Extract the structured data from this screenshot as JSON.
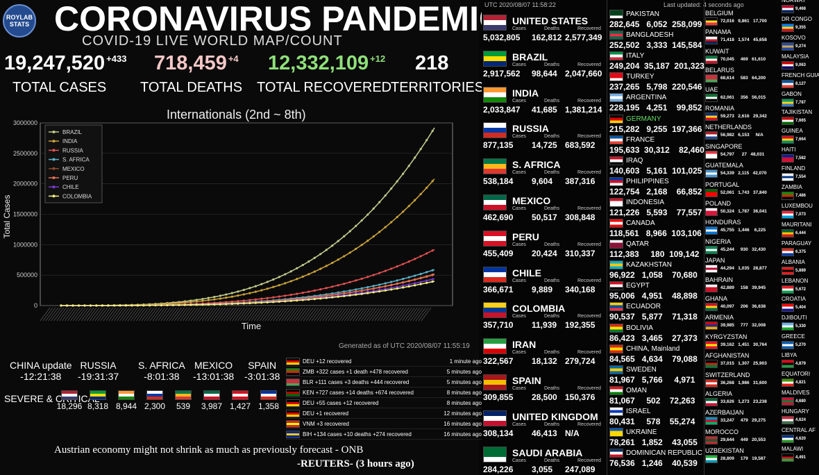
{
  "header": {
    "logo_text": "ROYLAB STATS",
    "title": "CORONAVIRUS PANDEMIC",
    "subtitle": "COVID-19 LIVE WORLD MAP/COUNT"
  },
  "totals": {
    "cases": {
      "value": "19,247,520",
      "delta": "+433",
      "label": "TOTAL CASES",
      "color": "#ffffff"
    },
    "deaths": {
      "value": "718,459",
      "delta": "+4",
      "label": "TOTAL DEATHS",
      "color": "#f5c7c7"
    },
    "recovered": {
      "value": "12,332,109",
      "delta": "+12",
      "label": "TOTAL RECOVERED",
      "color": "#8fe07a"
    },
    "territories": {
      "value": "218",
      "label": "TERRITORIES"
    }
  },
  "chart_data": {
    "type": "line",
    "title": "Internationals (2nd ~ 8th)",
    "xlabel": "Time",
    "ylabel": "Total Cases",
    "ylim": [
      0,
      3000000
    ],
    "yticks": [
      "0",
      "500000",
      "1000000",
      "1500000",
      "2000000",
      "2500000",
      "3000000"
    ],
    "legend_position": "top-left",
    "series": [
      {
        "name": "BRAZIL",
        "color": "#bfc98a",
        "final": 2920000
      },
      {
        "name": "INDIA",
        "color": "#c9a23a",
        "final": 2080000
      },
      {
        "name": "RUSSIA",
        "color": "#e05050",
        "final": 920000
      },
      {
        "name": "S. AFRICA",
        "color": "#5ab0c8",
        "final": 590000
      },
      {
        "name": "MEXICO",
        "color": "#8a4a30",
        "final": 520000
      },
      {
        "name": "PERU",
        "color": "#e07050",
        "final": 510000
      },
      {
        "name": "CHILE",
        "color": "#7a3ad0",
        "final": 440000
      },
      {
        "name": "COLOMBIA",
        "color": "#f0f080",
        "final": 400000
      }
    ],
    "footnote": "Generated as of UTC 2020/08/07 11:55:19"
  },
  "updates": [
    {
      "name": "CHINA update",
      "time": "-12:21:38"
    },
    {
      "name": "RUSSIA",
      "time": "-19:31:37"
    },
    {
      "name": "S. AFRICA",
      "time": "-8:01:38"
    },
    {
      "name": "MEXICO",
      "time": "-13:01:38"
    },
    {
      "name": "SPAIN",
      "time": "-3:01:38"
    }
  ],
  "severe": {
    "label": "SEVERE & CRITICAL",
    "items": [
      {
        "flag": "us",
        "value": "18,296"
      },
      {
        "flag": "br",
        "value": "8,318"
      },
      {
        "flag": "in",
        "value": "8,944"
      },
      {
        "flag": "ru",
        "value": "2,300"
      },
      {
        "flag": "za",
        "value": "539"
      },
      {
        "flag": "mx",
        "value": "3,987"
      },
      {
        "flag": "pe",
        "value": "1,427"
      },
      {
        "flag": "cl",
        "value": "1,358"
      }
    ]
  },
  "feed": [
    {
      "flag": "de",
      "text": "DEU +12 recovered",
      "time": "1 minute ago"
    },
    {
      "flag": "zm",
      "text": "ZMB +322 cases +1 death +478 recovered",
      "time": "5 minutes ago"
    },
    {
      "flag": "by",
      "text": "BLR +111 cases +3 deaths +444 recovered",
      "time": "5 minutes ago"
    },
    {
      "flag": "ke",
      "text": "KEN +727 cases +14 deaths +674 recovered",
      "time": "8 minutes ago"
    },
    {
      "flag": "de",
      "text": "DEU +55 cases +12 recovered",
      "time": "8 minutes ago"
    },
    {
      "flag": "de",
      "text": "DEU +1 recovered",
      "time": "12 minutes ago"
    },
    {
      "flag": "vn",
      "text": "VNM +3 recovered",
      "time": "16 minutes ago"
    },
    {
      "flag": "ba",
      "text": "BIH +134 cases +10 deaths +274 recovered",
      "time": "16 minutes ago"
    }
  ],
  "news": {
    "headline": "Austrian economy might not shrink as much as previously forecast - ONB",
    "source": "-REUTERS- (3 hours ago)"
  },
  "right_header": {
    "utc": "UTC 2020/08/07 11:58:22",
    "last_updated": "Last updated: 4 seconds ago"
  },
  "col_labels": {
    "cases": "Cases",
    "deaths": "Deaths",
    "recovered": "Recovered"
  },
  "big_countries": [
    {
      "name": "UNITED STATES",
      "flag": "us",
      "cases": "5,032,805",
      "deaths": "162,812",
      "recovered": "2,577,349"
    },
    {
      "name": "BRAZIL",
      "flag": "br",
      "cases": "2,917,562",
      "deaths": "98,644",
      "recovered": "2,047,660"
    },
    {
      "name": "INDIA",
      "flag": "in",
      "cases": "2,033,847",
      "deaths": "41,685",
      "recovered": "1,381,214"
    },
    {
      "name": "RUSSIA",
      "flag": "ru",
      "cases": "877,135",
      "deaths": "14,725",
      "recovered": "683,592"
    },
    {
      "name": "S. AFRICA",
      "flag": "za",
      "cases": "538,184",
      "deaths": "9,604",
      "recovered": "387,316"
    },
    {
      "name": "MEXICO",
      "flag": "mx",
      "cases": "462,690",
      "deaths": "50,517",
      "recovered": "308,848"
    },
    {
      "name": "PERU",
      "flag": "pe",
      "cases": "455,409",
      "deaths": "20,424",
      "recovered": "310,337"
    },
    {
      "name": "CHILE",
      "flag": "cl",
      "cases": "366,671",
      "deaths": "9,889",
      "recovered": "340,168"
    },
    {
      "name": "COLOMBIA",
      "flag": "co",
      "cases": "357,710",
      "deaths": "11,939",
      "recovered": "192,355"
    },
    {
      "name": "IRAN",
      "flag": "ir",
      "cases": "322,567",
      "deaths": "18,132",
      "recovered": "279,724"
    },
    {
      "name": "SPAIN",
      "flag": "es",
      "cases": "309,855",
      "deaths": "28,500",
      "recovered": "150,376"
    },
    {
      "name": "UNITED KINGDOM",
      "flag": "gb",
      "cases": "308,134",
      "deaths": "46,413",
      "recovered": "N/A"
    },
    {
      "name": "SAUDI ARABIA",
      "flag": "sa",
      "cases": "284,226",
      "deaths": "3,055",
      "recovered": "247,089"
    }
  ],
  "mid_countries": [
    {
      "name": "PAKISTAN",
      "flag": "pk",
      "values": "282,645   6,052  258,099"
    },
    {
      "name": "BANGLADESH",
      "flag": "bd",
      "values": "252,502   3,333  145,584"
    },
    {
      "name": "ITALY",
      "flag": "it",
      "values": "249,204  35,187  201,323"
    },
    {
      "name": "TURKEY",
      "flag": "tr",
      "values": "237,265   5,798  220,546"
    },
    {
      "name": "ARGENTINA",
      "flag": "ar",
      "values": "228,195   4,251    99,852"
    },
    {
      "name": "GERMANY",
      "flag": "de",
      "values": "215,282   9,255  197,366",
      "highlight": "#66dd66"
    },
    {
      "name": "FRANCE",
      "flag": "fr",
      "values": "195,633  30,312    82,460"
    },
    {
      "name": "IRAQ",
      "flag": "iq",
      "values": "140,603   5,161  101,025"
    },
    {
      "name": "PHILIPPINES",
      "flag": "ph",
      "values": "122,754   2,168    66,852"
    },
    {
      "name": "INDONESIA",
      "flag": "id",
      "values": "121,226   5,593    77,557"
    },
    {
      "name": "CANADA",
      "flag": "ca",
      "values": "118,561   8,966  103,106"
    },
    {
      "name": "QATAR",
      "flag": "qa",
      "values": "112,383     180  109,142"
    },
    {
      "name": "KAZAKHSTAN",
      "flag": "kz",
      "values": "96,922   1,058    70,680"
    },
    {
      "name": "EGYPT",
      "flag": "eg",
      "values": "95,006   4,951    48,898"
    },
    {
      "name": "ECUADOR",
      "flag": "ec",
      "values": "90,537   5,877    71,318"
    },
    {
      "name": "BOLIVIA",
      "flag": "bo",
      "values": "86,423   3,465    27,373"
    },
    {
      "name": "CHINA, Mainland",
      "flag": "cn",
      "values": "84,565   4,634    79,088"
    },
    {
      "name": "SWEDEN",
      "flag": "se",
      "values": "81,967   5,766     4,971"
    },
    {
      "name": "OMAN",
      "flag": "om",
      "values": "81,067     502    72,263"
    },
    {
      "name": "ISRAEL",
      "flag": "il",
      "values": "80,431     578    55,274"
    },
    {
      "name": "UKRAINE",
      "flag": "ua",
      "values": "78,261   1,852    43,055"
    },
    {
      "name": "DOMINICAN REPUBLIC",
      "flag": "do",
      "values": "76,536   1,246    40,539"
    }
  ],
  "small_countries": [
    {
      "name": "BELGIUM",
      "flag": "be",
      "values": "72,016   9,861   17,700"
    },
    {
      "name": "PANAMA",
      "flag": "pa",
      "values": "71,418   1,574   45,658"
    },
    {
      "name": "KUWAIT",
      "flag": "kw",
      "values": "70,045     469   61,610"
    },
    {
      "name": "BELARUS",
      "flag": "by",
      "values": "68,614     583   64,200"
    },
    {
      "name": "UAE",
      "flag": "ae",
      "values": "62,061     356   56,015"
    },
    {
      "name": "ROMANIA",
      "flag": "ro",
      "values": "59,273   2,616   29,342"
    },
    {
      "name": "NETHERLANDS",
      "flag": "nl",
      "values": "56,982   6,153     N/A"
    },
    {
      "name": "SINGAPORE",
      "flag": "sg",
      "values": "54,797      27   48,031"
    },
    {
      "name": "GUATEMALA",
      "flag": "gt",
      "values": "54,339   2,115   42,070"
    },
    {
      "name": "PORTUGAL",
      "flag": "pt",
      "values": "52,061   1,743   37,840"
    },
    {
      "name": "POLAND",
      "flag": "pl",
      "values": "50,324   1,787   36,041"
    },
    {
      "name": "HONDURAS",
      "flag": "hn",
      "values": "45,755   1,446    6,225"
    },
    {
      "name": "NIGERIA",
      "flag": "ng",
      "values": "45,244     930   32,430"
    },
    {
      "name": "JAPAN",
      "flag": "jp",
      "values": "44,294   1,035   28,877"
    },
    {
      "name": "BAHRAIN",
      "flag": "bh",
      "values": "42,889     158   39,945"
    },
    {
      "name": "GHANA",
      "flag": "gh",
      "values": "40,097     206   36,638"
    },
    {
      "name": "ARMENIA",
      "flag": "am",
      "values": "39,985     777   32,008"
    },
    {
      "name": "KYRGYZSTAN",
      "flag": "kg",
      "values": "39,162   1,451   30,764"
    },
    {
      "name": "AFGHANISTAN",
      "flag": "af",
      "values": "37,015   1,307   25,903"
    },
    {
      "name": "SWITZERLAND",
      "flag": "ch",
      "values": "36,268   1,986   31,600"
    },
    {
      "name": "ALGERIA",
      "flag": "dz",
      "values": "33,626   1,273   23,238"
    },
    {
      "name": "AZERBAIJAN",
      "flag": "az",
      "values": "33,247     479   29,275"
    },
    {
      "name": "MOROCCO",
      "flag": "ma",
      "values": "29,644     449   20,553"
    },
    {
      "name": "UZBEKISTAN",
      "flag": "uz",
      "values": "28,809     179   19,587"
    }
  ],
  "tiny_countries": [
    {
      "name": "NORWAY",
      "flag": "no",
      "value": "9,468"
    },
    {
      "name": "DR CONGO",
      "flag": "cd",
      "value": "9,355"
    },
    {
      "name": "KOSOVO",
      "flag": "xk",
      "value": "9,274"
    },
    {
      "name": "MALAYSIA",
      "flag": "my",
      "value": "9,063"
    },
    {
      "name": "FRENCH GUIA",
      "flag": "gf",
      "value": "8,127"
    },
    {
      "name": "GABON",
      "flag": "ga",
      "value": "7,787"
    },
    {
      "name": "TAJIKISTAN",
      "flag": "tj",
      "value": "7,665"
    },
    {
      "name": "GUINEA",
      "flag": "gn",
      "value": "7,664"
    },
    {
      "name": "HAITI",
      "flag": "ht",
      "value": "7,582"
    },
    {
      "name": "FINLAND",
      "flag": "fi",
      "value": "7,554"
    },
    {
      "name": "ZAMBIA",
      "flag": "zm",
      "value": "7,486"
    },
    {
      "name": "LUXEMBOU",
      "flag": "lu",
      "value": "7,073"
    },
    {
      "name": "MAURITANI",
      "flag": "mr",
      "value": "6,444"
    },
    {
      "name": "PARAGUAY",
      "flag": "py",
      "value": "6,375"
    },
    {
      "name": "ALBANIA",
      "flag": "al",
      "value": "5,889"
    },
    {
      "name": "LEBANON",
      "flag": "lb",
      "value": "5,672"
    },
    {
      "name": "CROATIA",
      "flag": "hr",
      "value": "5,404"
    },
    {
      "name": "DJIBOUTI",
      "flag": "dj",
      "value": "5,330"
    },
    {
      "name": "GREECE",
      "flag": "gr",
      "value": "5,270"
    },
    {
      "name": "LIBYA",
      "flag": "ly",
      "value": "4,879"
    },
    {
      "name": "EQUATORI",
      "flag": "gq",
      "value": "4,821"
    },
    {
      "name": "MALDIVES",
      "flag": "mv",
      "value": "4,680"
    },
    {
      "name": "HUNGARY",
      "flag": "hu",
      "value": "4,624"
    },
    {
      "name": "CENTRAL AF",
      "flag": "cf",
      "value": "4,620"
    },
    {
      "name": "MALAWI",
      "flag": "mw",
      "value": "4,491"
    }
  ],
  "flag_colors": {
    "us": [
      "#b22234",
      "#ffffff",
      "#3c3b6e"
    ],
    "br": [
      "#009c3b",
      "#ffdf00",
      "#002776"
    ],
    "in": [
      "#ff9933",
      "#ffffff",
      "#138808"
    ],
    "ru": [
      "#ffffff",
      "#0039a6",
      "#d52b1e"
    ],
    "za": [
      "#007749",
      "#ffb81c",
      "#de3831"
    ],
    "mx": [
      "#006847",
      "#ffffff",
      "#ce1126"
    ],
    "pe": [
      "#d91023",
      "#ffffff",
      "#d91023"
    ],
    "cl": [
      "#0033a0",
      "#ffffff",
      "#da291c"
    ],
    "co": [
      "#fcd116",
      "#003893",
      "#ce1126"
    ],
    "ir": [
      "#239f40",
      "#ffffff",
      "#da0000"
    ],
    "es": [
      "#aa151b",
      "#f1bf00",
      "#aa151b"
    ],
    "gb": [
      "#012169",
      "#ffffff",
      "#c8102e"
    ],
    "sa": [
      "#006c35",
      "#006c35",
      "#ffffff"
    ],
    "pk": [
      "#01411c",
      "#01411c",
      "#ffffff"
    ],
    "bd": [
      "#006a4e",
      "#f42a41",
      "#006a4e"
    ],
    "it": [
      "#009246",
      "#ffffff",
      "#ce2b37"
    ],
    "tr": [
      "#e30a17",
      "#e30a17",
      "#ffffff"
    ],
    "ar": [
      "#74acdf",
      "#ffffff",
      "#74acdf"
    ],
    "de": [
      "#000000",
      "#dd0000",
      "#ffce00"
    ],
    "fr": [
      "#0055a4",
      "#ffffff",
      "#ef4135"
    ],
    "iq": [
      "#ce1126",
      "#ffffff",
      "#000000"
    ],
    "ph": [
      "#0038a8",
      "#ce1126",
      "#ffffff"
    ],
    "id": [
      "#ce1126",
      "#ffffff",
      "#ffffff"
    ],
    "ca": [
      "#ff0000",
      "#ffffff",
      "#ff0000"
    ],
    "qa": [
      "#ffffff",
      "#8a1538",
      "#8a1538"
    ],
    "kz": [
      "#00afca",
      "#fec50c",
      "#00afca"
    ],
    "eg": [
      "#ce1126",
      "#ffffff",
      "#000000"
    ],
    "ec": [
      "#ffd100",
      "#034ea2",
      "#ef3340"
    ],
    "bo": [
      "#d52b1e",
      "#f9e300",
      "#007934"
    ],
    "cn": [
      "#de2910",
      "#ffde00",
      "#de2910"
    ],
    "se": [
      "#006aa7",
      "#fecc00",
      "#006aa7"
    ],
    "om": [
      "#db161b",
      "#ffffff",
      "#008000"
    ],
    "il": [
      "#ffffff",
      "#0038b8",
      "#ffffff"
    ],
    "ua": [
      "#0057b7",
      "#ffd700",
      "#ffd700"
    ],
    "do": [
      "#002d62",
      "#ffffff",
      "#ce1126"
    ],
    "be": [
      "#000000",
      "#fdda24",
      "#ef3340"
    ],
    "pa": [
      "#ffffff",
      "#da121a",
      "#072357"
    ],
    "kw": [
      "#007a3d",
      "#ffffff",
      "#ce1126"
    ],
    "by": [
      "#c8313e",
      "#c8313e",
      "#4aa657"
    ],
    "ae": [
      "#00732f",
      "#ffffff",
      "#000000"
    ],
    "ro": [
      "#002b7f",
      "#fcd116",
      "#ce1126"
    ],
    "nl": [
      "#ae1c28",
      "#ffffff",
      "#21468b"
    ],
    "sg": [
      "#ef3340",
      "#ffffff",
      "#ffffff"
    ],
    "gt": [
      "#4997d0",
      "#ffffff",
      "#4997d0"
    ],
    "pt": [
      "#006600",
      "#ff0000",
      "#ff0000"
    ],
    "pl": [
      "#ffffff",
      "#dc143c",
      "#dc143c"
    ],
    "hn": [
      "#0073cf",
      "#ffffff",
      "#0073cf"
    ],
    "ng": [
      "#008751",
      "#ffffff",
      "#008751"
    ],
    "jp": [
      "#ffffff",
      "#bc002d",
      "#ffffff"
    ],
    "bh": [
      "#ffffff",
      "#ce1126",
      "#ce1126"
    ],
    "gh": [
      "#ce1126",
      "#fcd116",
      "#006b3f"
    ],
    "am": [
      "#d90012",
      "#0033a0",
      "#f2a800"
    ],
    "kg": [
      "#e8112d",
      "#ffef00",
      "#e8112d"
    ],
    "af": [
      "#000000",
      "#d32011",
      "#007a36"
    ],
    "ch": [
      "#d52b1e",
      "#ffffff",
      "#d52b1e"
    ],
    "dz": [
      "#006233",
      "#ffffff",
      "#d21034"
    ],
    "az": [
      "#0092bc",
      "#e4002b",
      "#00af66"
    ],
    "ma": [
      "#c1272d",
      "#006233",
      "#c1272d"
    ],
    "uz": [
      "#1eb53a",
      "#ffffff",
      "#0099b5"
    ],
    "no": [
      "#ba0c2f",
      "#ffffff",
      "#00205b"
    ],
    "cd": [
      "#007fff",
      "#f7d618",
      "#ce1021"
    ],
    "xk": [
      "#244aa5",
      "#d0a650",
      "#244aa5"
    ],
    "my": [
      "#cc0001",
      "#ffffff",
      "#010066"
    ],
    "gf": [
      "#0055a4",
      "#ffffff",
      "#ef4135"
    ],
    "ga": [
      "#009e60",
      "#fcd116",
      "#3a75c4"
    ],
    "tj": [
      "#cc0000",
      "#ffffff",
      "#006600"
    ],
    "gn": [
      "#ce1126",
      "#fcd116",
      "#009460"
    ],
    "ht": [
      "#00209f",
      "#d21034",
      "#d21034"
    ],
    "fi": [
      "#ffffff",
      "#003580",
      "#ffffff"
    ],
    "zm": [
      "#198a00",
      "#de2010",
      "#000000"
    ],
    "lu": [
      "#ed2939",
      "#ffffff",
      "#00a1de"
    ],
    "mr": [
      "#006233",
      "#ffc400",
      "#d01c1f"
    ],
    "py": [
      "#d52b1e",
      "#ffffff",
      "#0038a8"
    ],
    "al": [
      "#e41e20",
      "#000000",
      "#e41e20"
    ],
    "lb": [
      "#ed1c24",
      "#ffffff",
      "#00a650"
    ],
    "hr": [
      "#ff0000",
      "#ffffff",
      "#171796"
    ],
    "dj": [
      "#6ab2e7",
      "#ffffff",
      "#12ad2b"
    ],
    "gr": [
      "#0d5eaf",
      "#ffffff",
      "#0d5eaf"
    ],
    "ly": [
      "#e70013",
      "#000000",
      "#239e46"
    ],
    "gq": [
      "#3e9a00",
      "#ffffff",
      "#e32118"
    ],
    "mv": [
      "#d21034",
      "#007e3a",
      "#d21034"
    ],
    "hu": [
      "#cd2a3e",
      "#ffffff",
      "#436f4d"
    ],
    "cf": [
      "#003082",
      "#ffffff",
      "#289728"
    ],
    "mw": [
      "#000000",
      "#ce1126",
      "#339e35"
    ],
    "ke": [
      "#000000",
      "#bb0000",
      "#006600"
    ],
    "vn": [
      "#da251d",
      "#ffff00",
      "#da251d"
    ],
    "ba": [
      "#002395",
      "#fecb00",
      "#002395"
    ]
  }
}
